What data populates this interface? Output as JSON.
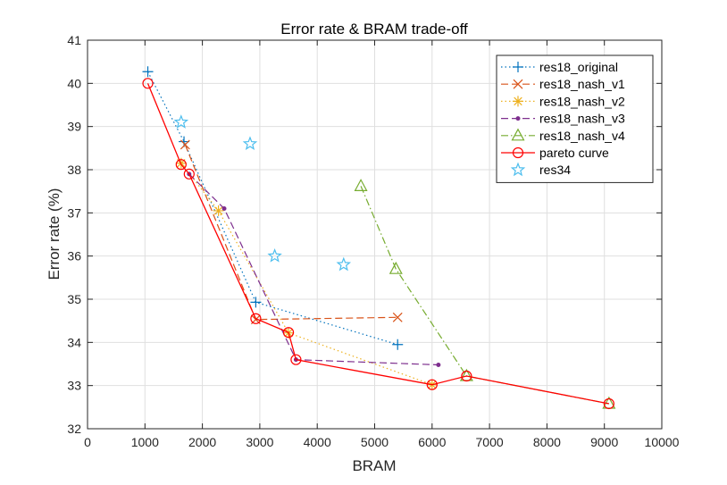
{
  "chart_data": {
    "type": "line",
    "title": "Error rate & BRAM trade-off",
    "xlabel": "BRAM",
    "ylabel": "Error rate (%)",
    "xlim": [
      0,
      10000
    ],
    "ylim": [
      32,
      41
    ],
    "xticks": [
      0,
      1000,
      2000,
      3000,
      4000,
      5000,
      6000,
      7000,
      8000,
      9000,
      10000
    ],
    "yticks": [
      32,
      33,
      34,
      35,
      36,
      37,
      38,
      39,
      40,
      41
    ],
    "grid": true,
    "legend_position": "top-right",
    "series": [
      {
        "name": "res18_original",
        "color": "#0072BD",
        "line": "dotted",
        "marker": "plus",
        "x": [
          1050,
          1680,
          2930,
          5400
        ],
        "y": [
          40.27,
          38.65,
          34.93,
          33.95
        ]
      },
      {
        "name": "res18_nash_v1",
        "color": "#D95319",
        "line": "dashed",
        "marker": "x",
        "x": [
          1700,
          2930,
          5400
        ],
        "y": [
          38.58,
          34.53,
          34.58
        ]
      },
      {
        "name": "res18_nash_v2",
        "color": "#EDB120",
        "line": "dotted",
        "marker": "asterisk",
        "x": [
          1630,
          2280,
          3500,
          6000
        ],
        "y": [
          38.15,
          37.05,
          34.22,
          33.02
        ]
      },
      {
        "name": "res18_nash_v3",
        "color": "#7E2F8E",
        "line": "dashed",
        "marker": "dot",
        "x": [
          1770,
          2380,
          3630,
          6110
        ],
        "y": [
          37.9,
          37.1,
          33.6,
          33.48
        ]
      },
      {
        "name": "res18_nash_v4",
        "color": "#77AC30",
        "line": "dashdot",
        "marker": "triangle",
        "x": [
          4760,
          5370,
          6600,
          9080
        ],
        "y": [
          37.62,
          35.7,
          33.22,
          32.58
        ]
      },
      {
        "name": "pareto curve",
        "color": "#FF0000",
        "line": "solid",
        "marker": "circle",
        "x": [
          1050,
          1630,
          1770,
          2930,
          3500,
          3630,
          6000,
          6600,
          9080
        ],
        "y": [
          40.0,
          38.12,
          37.9,
          34.55,
          34.23,
          33.6,
          33.02,
          33.22,
          32.58
        ]
      },
      {
        "name": "res34",
        "color": "#4DBEEE",
        "line": "none",
        "marker": "star",
        "x": [
          1630,
          2830,
          3260,
          4460
        ],
        "y": [
          39.1,
          38.6,
          36.0,
          35.8
        ]
      }
    ]
  }
}
